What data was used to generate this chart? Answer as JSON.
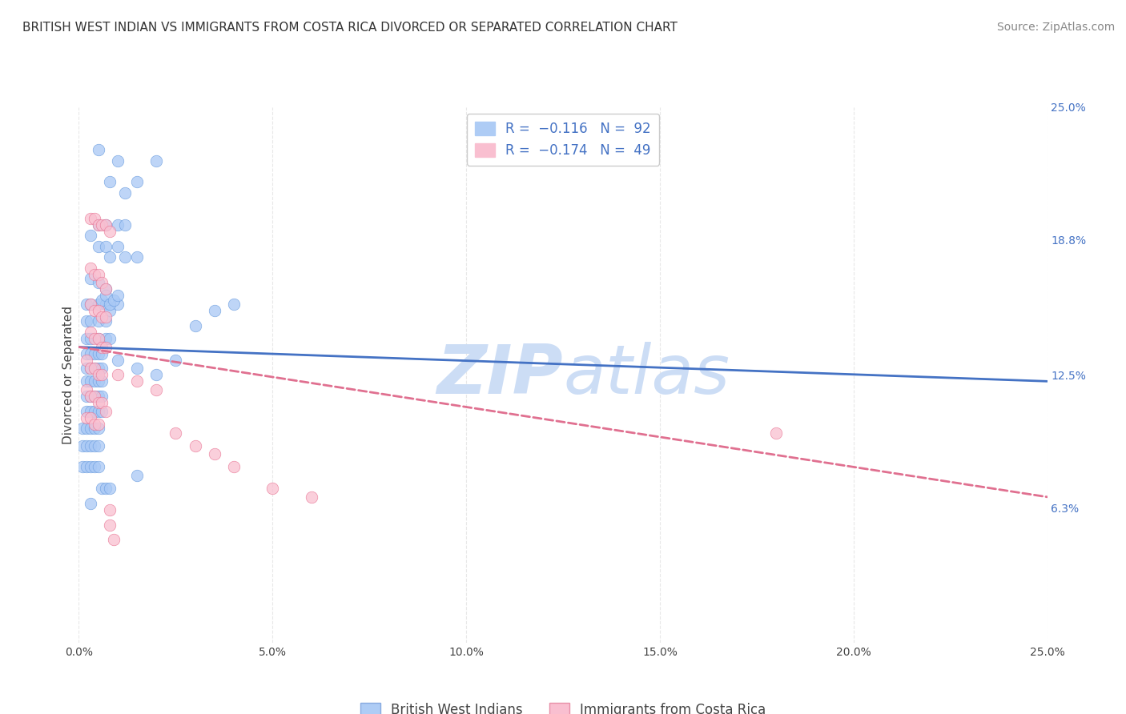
{
  "title": "BRITISH WEST INDIAN VS IMMIGRANTS FROM COSTA RICA DIVORCED OR SEPARATED CORRELATION CHART",
  "source": "Source: ZipAtlas.com",
  "ylabel": "Divorced or Separated",
  "xlim": [
    0.0,
    0.25
  ],
  "ylim": [
    0.0,
    0.25
  ],
  "watermark_zip": "ZIP",
  "watermark_atlas": "atlas",
  "legend_items": [
    {
      "label_r": "R = ",
      "r_val": "-0.116",
      "label_n": "   N = ",
      "n_val": "92",
      "color": "#aeccf5"
    },
    {
      "label_r": "R = ",
      "r_val": "-0.174",
      "label_n": "   N = ",
      "n_val": "49",
      "color": "#f9bfd0"
    }
  ],
  "series_blue": {
    "name": "British West Indians",
    "fill_color": "#a8c8f5",
    "edge_color": "#6699dd",
    "R": -0.116,
    "N": 92,
    "x": [
      0.005,
      0.008,
      0.01,
      0.012,
      0.015,
      0.02,
      0.005,
      0.007,
      0.01,
      0.012,
      0.003,
      0.005,
      0.007,
      0.008,
      0.01,
      0.012,
      0.015,
      0.003,
      0.005,
      0.007,
      0.002,
      0.003,
      0.005,
      0.007,
      0.008,
      0.01,
      0.002,
      0.003,
      0.005,
      0.007,
      0.002,
      0.003,
      0.005,
      0.007,
      0.008,
      0.002,
      0.003,
      0.004,
      0.005,
      0.006,
      0.002,
      0.003,
      0.004,
      0.005,
      0.006,
      0.002,
      0.003,
      0.004,
      0.005,
      0.006,
      0.002,
      0.003,
      0.004,
      0.005,
      0.006,
      0.002,
      0.003,
      0.004,
      0.005,
      0.006,
      0.001,
      0.002,
      0.003,
      0.004,
      0.005,
      0.001,
      0.002,
      0.003,
      0.004,
      0.005,
      0.001,
      0.002,
      0.003,
      0.004,
      0.005,
      0.01,
      0.015,
      0.02,
      0.025,
      0.03,
      0.006,
      0.007,
      0.008,
      0.009,
      0.01,
      0.006,
      0.007,
      0.008,
      0.035,
      0.04,
      0.015,
      0.003
    ],
    "y": [
      0.23,
      0.215,
      0.225,
      0.21,
      0.215,
      0.225,
      0.195,
      0.195,
      0.195,
      0.195,
      0.19,
      0.185,
      0.185,
      0.18,
      0.185,
      0.18,
      0.18,
      0.17,
      0.168,
      0.165,
      0.158,
      0.158,
      0.158,
      0.158,
      0.155,
      0.158,
      0.15,
      0.15,
      0.15,
      0.15,
      0.142,
      0.142,
      0.142,
      0.142,
      0.142,
      0.135,
      0.135,
      0.135,
      0.135,
      0.135,
      0.128,
      0.128,
      0.128,
      0.128,
      0.128,
      0.122,
      0.122,
      0.122,
      0.122,
      0.122,
      0.115,
      0.115,
      0.115,
      0.115,
      0.115,
      0.108,
      0.108,
      0.108,
      0.108,
      0.108,
      0.1,
      0.1,
      0.1,
      0.1,
      0.1,
      0.092,
      0.092,
      0.092,
      0.092,
      0.092,
      0.082,
      0.082,
      0.082,
      0.082,
      0.082,
      0.132,
      0.128,
      0.125,
      0.132,
      0.148,
      0.16,
      0.162,
      0.158,
      0.16,
      0.162,
      0.072,
      0.072,
      0.072,
      0.155,
      0.158,
      0.078,
      0.065
    ]
  },
  "series_pink": {
    "name": "Immigrants from Costa Rica",
    "fill_color": "#f9bfd0",
    "edge_color": "#e87090",
    "R": -0.174,
    "N": 49,
    "x": [
      0.003,
      0.004,
      0.005,
      0.006,
      0.007,
      0.008,
      0.003,
      0.004,
      0.005,
      0.006,
      0.003,
      0.004,
      0.005,
      0.006,
      0.007,
      0.003,
      0.004,
      0.005,
      0.006,
      0.007,
      0.002,
      0.003,
      0.004,
      0.005,
      0.006,
      0.002,
      0.003,
      0.004,
      0.005,
      0.006,
      0.002,
      0.003,
      0.004,
      0.005,
      0.01,
      0.015,
      0.02,
      0.025,
      0.03,
      0.035,
      0.04,
      0.05,
      0.06,
      0.18,
      0.007,
      0.007,
      0.008,
      0.008,
      0.009
    ],
    "y": [
      0.198,
      0.198,
      0.195,
      0.195,
      0.195,
      0.192,
      0.175,
      0.172,
      0.172,
      0.168,
      0.158,
      0.155,
      0.155,
      0.152,
      0.152,
      0.145,
      0.142,
      0.142,
      0.138,
      0.138,
      0.132,
      0.128,
      0.128,
      0.125,
      0.125,
      0.118,
      0.115,
      0.115,
      0.112,
      0.112,
      0.105,
      0.105,
      0.102,
      0.102,
      0.125,
      0.122,
      0.118,
      0.098,
      0.092,
      0.088,
      0.082,
      0.072,
      0.068,
      0.098,
      0.165,
      0.108,
      0.062,
      0.055,
      0.048
    ]
  },
  "trend_blue": {
    "x_start": 0.0,
    "x_end": 0.25,
    "y_start": 0.138,
    "y_end": 0.122,
    "color": "#4472c4",
    "linewidth": 2.0,
    "linestyle": "-"
  },
  "trend_pink": {
    "x_start": 0.0,
    "x_end": 0.25,
    "y_start": 0.138,
    "y_end": 0.068,
    "color": "#e07090",
    "linewidth": 2.0,
    "linestyle": "--"
  },
  "bg_color": "#ffffff",
  "grid_color": "#e8e8e8",
  "watermark_color": "#ccddf5",
  "title_fontsize": 11,
  "source_fontsize": 10,
  "axis_label_fontsize": 11,
  "tick_fontsize": 10,
  "legend_fontsize": 12
}
